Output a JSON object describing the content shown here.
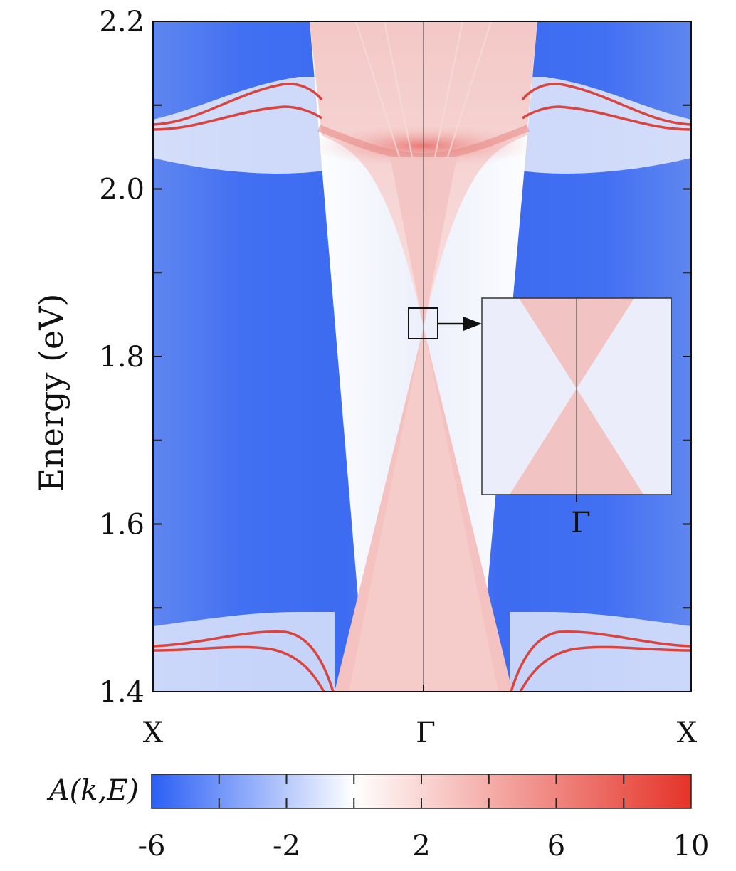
{
  "chart_data": {
    "type": "heatmap",
    "title": "",
    "ylabel": "Energy (eV)",
    "xlabel": "",
    "ylim": [
      1.4,
      2.2
    ],
    "y_ticks": [
      "1.4",
      "1.6",
      "1.8",
      "2.0",
      "2.2"
    ],
    "y_tick_values": [
      1.4,
      1.6,
      1.8,
      2.0,
      2.2
    ],
    "y_minor_tick_values": [
      1.5,
      1.7,
      1.9,
      2.1
    ],
    "x_ticks": [
      "X",
      "Γ",
      "X"
    ],
    "colorbar": {
      "label": "A(k,E)",
      "range": [
        -6,
        10
      ],
      "ticks": [
        "-6",
        "-2",
        "2",
        "6",
        "10"
      ],
      "tick_values": [
        -6,
        -2,
        2,
        6,
        10
      ],
      "minor_tick_values": [
        -4,
        0,
        4,
        8
      ],
      "colors": [
        "#2a5ff5",
        "#ffffff",
        "#e53328"
      ]
    },
    "features": {
      "dirac_point_energy": 1.84,
      "upper_band_minimum": 2.04,
      "upper_side_bands": [
        2.075,
        2.095,
        2.13
      ],
      "lower_side_bands": [
        1.45,
        1.465,
        1.47
      ]
    },
    "inset": {
      "x_tick": "Γ",
      "zoom_region_energy": [
        1.82,
        1.855
      ]
    }
  },
  "colors": {
    "blue": "#2a5ff5",
    "red": "#e53328",
    "white": "#ffffff",
    "pale": "#ebeefa",
    "pink": "#f3c8c7"
  }
}
